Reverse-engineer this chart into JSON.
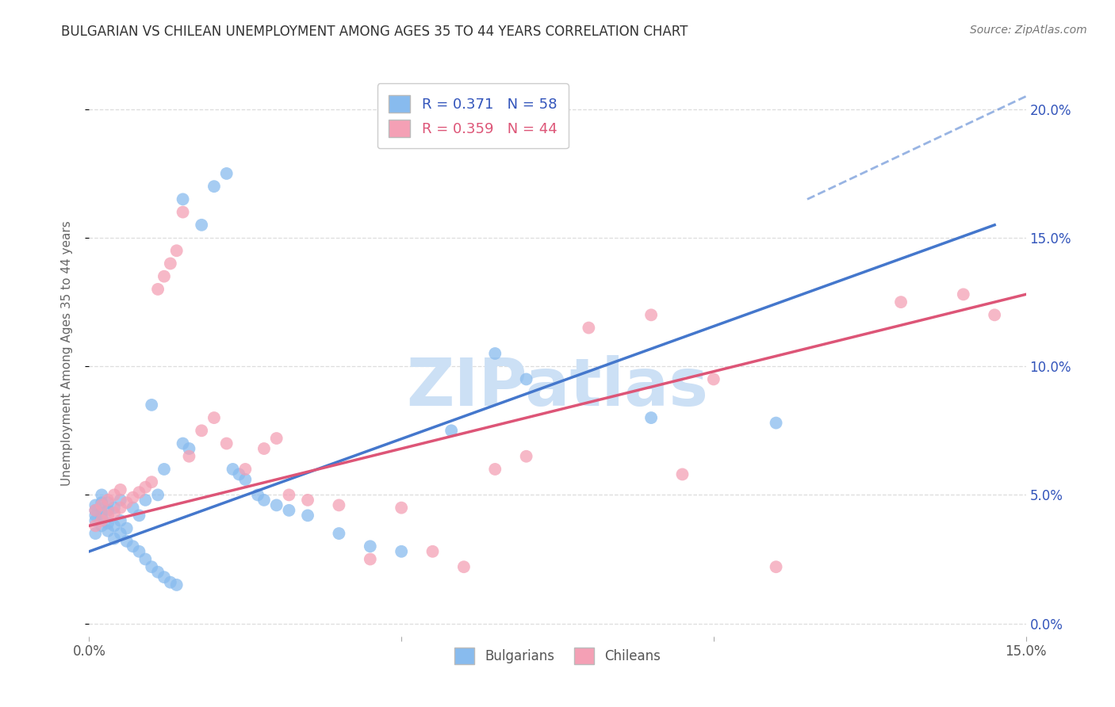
{
  "title": "BULGARIAN VS CHILEAN UNEMPLOYMENT AMONG AGES 35 TO 44 YEARS CORRELATION CHART",
  "source": "Source: ZipAtlas.com",
  "ylabel": "Unemployment Among Ages 35 to 44 years",
  "bg_color": "#ffffff",
  "grid_color": "#dddddd",
  "bulgarian_color": "#88bbee",
  "chilean_color": "#f4a0b5",
  "regression_blue": "#4477cc",
  "regression_pink": "#dd5577",
  "R_bulgarian": 0.371,
  "N_bulgarian": 58,
  "R_chilean": 0.359,
  "N_chilean": 44,
  "legend_text_color": "#3355bb",
  "watermark_color": "#cce0f5",
  "xlim": [
    0.0,
    0.15
  ],
  "ylim": [
    -0.005,
    0.215
  ],
  "blue_line_x": [
    0.0,
    0.145
  ],
  "blue_line_y": [
    0.028,
    0.155
  ],
  "pink_line_x": [
    0.0,
    0.15
  ],
  "pink_line_y": [
    0.038,
    0.128
  ],
  "dash_line_x": [
    0.115,
    0.15
  ],
  "dash_line_y": [
    0.165,
    0.205
  ],
  "bulgarians_x": [
    0.001,
    0.001,
    0.001,
    0.001,
    0.001,
    0.002,
    0.002,
    0.002,
    0.002,
    0.002,
    0.003,
    0.003,
    0.003,
    0.003,
    0.004,
    0.004,
    0.004,
    0.005,
    0.005,
    0.005,
    0.006,
    0.006,
    0.007,
    0.007,
    0.008,
    0.008,
    0.009,
    0.009,
    0.01,
    0.01,
    0.011,
    0.011,
    0.012,
    0.012,
    0.013,
    0.014,
    0.015,
    0.015,
    0.016,
    0.018,
    0.02,
    0.022,
    0.023,
    0.024,
    0.025,
    0.027,
    0.028,
    0.03,
    0.032,
    0.035,
    0.04,
    0.045,
    0.05,
    0.058,
    0.065,
    0.07,
    0.09,
    0.11
  ],
  "bulgarians_y": [
    0.035,
    0.04,
    0.042,
    0.044,
    0.046,
    0.038,
    0.041,
    0.043,
    0.047,
    0.05,
    0.036,
    0.039,
    0.044,
    0.047,
    0.033,
    0.038,
    0.045,
    0.035,
    0.04,
    0.048,
    0.032,
    0.037,
    0.03,
    0.045,
    0.028,
    0.042,
    0.025,
    0.048,
    0.022,
    0.085,
    0.02,
    0.05,
    0.018,
    0.06,
    0.016,
    0.015,
    0.07,
    0.165,
    0.068,
    0.155,
    0.17,
    0.175,
    0.06,
    0.058,
    0.056,
    0.05,
    0.048,
    0.046,
    0.044,
    0.042,
    0.035,
    0.03,
    0.028,
    0.075,
    0.105,
    0.095,
    0.08,
    0.078
  ],
  "chileans_x": [
    0.001,
    0.001,
    0.002,
    0.002,
    0.003,
    0.003,
    0.004,
    0.004,
    0.005,
    0.005,
    0.006,
    0.007,
    0.008,
    0.009,
    0.01,
    0.011,
    0.012,
    0.013,
    0.014,
    0.015,
    0.016,
    0.018,
    0.02,
    0.022,
    0.025,
    0.028,
    0.03,
    0.032,
    0.035,
    0.04,
    0.045,
    0.05,
    0.055,
    0.06,
    0.065,
    0.07,
    0.08,
    0.09,
    0.095,
    0.1,
    0.11,
    0.13,
    0.14,
    0.145
  ],
  "chileans_y": [
    0.038,
    0.044,
    0.04,
    0.046,
    0.042,
    0.048,
    0.043,
    0.05,
    0.045,
    0.052,
    0.047,
    0.049,
    0.051,
    0.053,
    0.055,
    0.13,
    0.135,
    0.14,
    0.145,
    0.16,
    0.065,
    0.075,
    0.08,
    0.07,
    0.06,
    0.068,
    0.072,
    0.05,
    0.048,
    0.046,
    0.025,
    0.045,
    0.028,
    0.022,
    0.06,
    0.065,
    0.115,
    0.12,
    0.058,
    0.095,
    0.022,
    0.125,
    0.128,
    0.12
  ]
}
